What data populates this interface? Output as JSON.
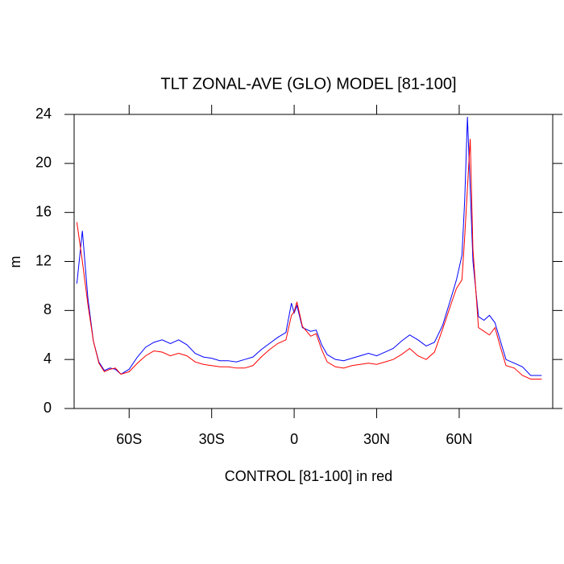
{
  "chart_data": {
    "type": "line",
    "title": "TLT ZONAL-AVE (GLO) MODEL [81-100]",
    "y_label": "m",
    "x_label": "CONTROL [81-100] in red",
    "x": [
      -79,
      -77,
      -75,
      -73,
      -71,
      -69,
      -67,
      -65,
      -63,
      -60,
      -57,
      -54,
      -51,
      -48,
      -45,
      -42,
      -39,
      -36,
      -33,
      -30,
      -27,
      -24,
      -21,
      -18,
      -15,
      -12,
      -9,
      -6,
      -3,
      -1,
      0,
      1,
      3,
      6,
      8,
      10,
      12,
      15,
      18,
      21,
      24,
      27,
      30,
      33,
      36,
      39,
      42,
      45,
      48,
      51,
      54,
      57,
      59,
      61,
      62,
      63,
      64,
      65,
      67,
      69,
      71,
      73,
      75,
      77,
      80,
      83,
      86,
      90
    ],
    "series": [
      {
        "color": "#0000ff",
        "values": [
          10.2,
          14.5,
          9,
          5.5,
          3.8,
          3.1,
          3.3,
          3.2,
          2.8,
          3.2,
          4.2,
          5.0,
          5.4,
          5.6,
          5.3,
          5.6,
          5.2,
          4.5,
          4.2,
          4.1,
          3.9,
          3.9,
          3.8,
          4.0,
          4.2,
          4.8,
          5.3,
          5.8,
          6.2,
          8.6,
          7.8,
          8.4,
          6.6,
          6.3,
          6.4,
          5.2,
          4.4,
          4.0,
          3.9,
          4.1,
          4.3,
          4.5,
          4.3,
          4.6,
          4.9,
          5.5,
          6.0,
          5.6,
          5.1,
          5.4,
          6.8,
          9.0,
          10.5,
          12.5,
          17,
          23.8,
          18,
          12,
          7.5,
          7.2,
          7.6,
          7.0,
          5.5,
          4.0,
          3.7,
          3.4,
          2.7,
          2.7
        ]
      },
      {
        "color": "#ff0000",
        "values": [
          15.2,
          12,
          8.5,
          5.5,
          3.7,
          3.0,
          3.2,
          3.3,
          2.8,
          3.0,
          3.7,
          4.3,
          4.7,
          4.6,
          4.3,
          4.5,
          4.3,
          3.8,
          3.6,
          3.5,
          3.4,
          3.4,
          3.3,
          3.3,
          3.5,
          4.2,
          4.8,
          5.3,
          5.6,
          7.6,
          7.9,
          8.7,
          6.7,
          5.9,
          6.1,
          4.8,
          3.8,
          3.4,
          3.3,
          3.5,
          3.6,
          3.7,
          3.6,
          3.8,
          4.0,
          4.4,
          4.9,
          4.3,
          4.0,
          4.6,
          6.5,
          8.5,
          9.8,
          10.5,
          14,
          18,
          22,
          13,
          6.6,
          6.3,
          6.0,
          6.6,
          5.0,
          3.5,
          3.3,
          2.7,
          2.4,
          2.4
        ]
      }
    ],
    "xlim": [
      -80,
      94
    ],
    "xticks": [
      {
        "value": -60,
        "label": "60S"
      },
      {
        "value": -30,
        "label": "30S"
      },
      0,
      {
        "value": 30,
        "label": "30N"
      },
      {
        "value": 60,
        "label": "60N"
      }
    ],
    "ylim": [
      0,
      24
    ],
    "yticks": [
      0,
      4,
      8,
      12,
      16,
      20,
      24
    ]
  }
}
